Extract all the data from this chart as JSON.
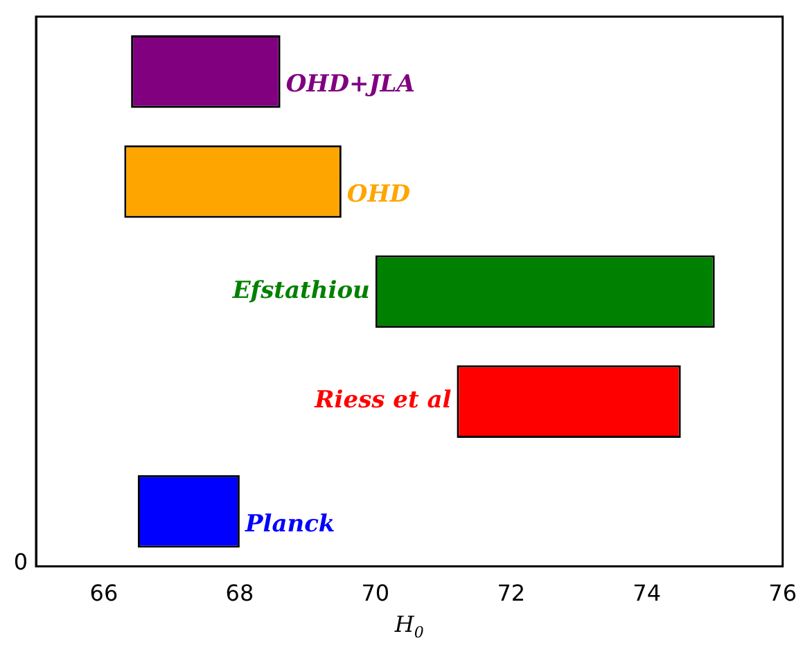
{
  "chart_data": {
    "type": "bar",
    "orientation": "horizontal",
    "xlabel": "H$_{0}$",
    "categories": [
      "OHD+JLA",
      "OHD",
      "Efstathiou",
      "Riess et al",
      "Planck"
    ],
    "base": [
      66.4,
      66.3,
      70.0,
      71.2,
      66.5
    ],
    "values": [
      2.2,
      3.2,
      5.0,
      3.3,
      1.5
    ],
    "colors": [
      "#800080",
      "#ffa500",
      "#008000",
      "#ff0000",
      "#0000ff"
    ],
    "xlim": [
      65,
      76
    ],
    "xticks": [
      66,
      68,
      70,
      72,
      74,
      76
    ],
    "annotations": [
      "0"
    ],
    "grid": false,
    "legend": false
  }
}
